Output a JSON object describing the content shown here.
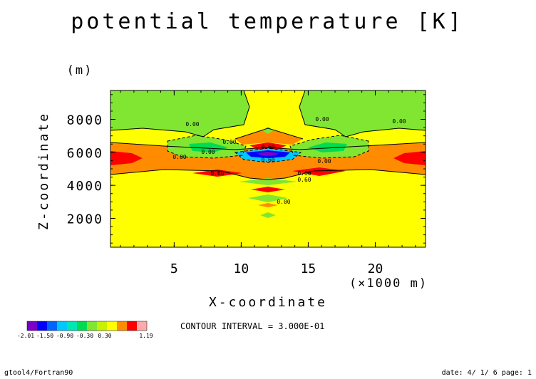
{
  "chart_data": {
    "type": "heatmap",
    "title": "potential temperature [K]",
    "xlabel": "X-coordinate",
    "ylabel": "Z-coordinate",
    "x_unit": "(×1000 m)",
    "y_unit": "(m)",
    "xlim": [
      0.25,
      23.75
    ],
    "ylim": [
      250,
      9750
    ],
    "x_ticks": [
      5,
      10,
      15,
      20
    ],
    "x_tick_labels": [
      "5",
      "10",
      "15",
      "20"
    ],
    "y_ticks": [
      2000,
      4000,
      6000,
      8000
    ],
    "y_tick_labels": [
      "2000",
      "4000",
      "6000",
      "8000"
    ],
    "contour_interval": "CONTOUR INTERVAL = 3.000E-01",
    "contour_labels": [
      "0.00",
      "0.00",
      "0.00",
      "0.00",
      "0.00",
      "0.00",
      "0.00",
      "0.60",
      "0.60",
      "0.60",
      "0.60",
      "0.60",
      "0.00"
    ],
    "colorbar": {
      "colors": [
        "#7a00c8",
        "#0000ff",
        "#0064ff",
        "#00c8ff",
        "#00e6b4",
        "#00dc50",
        "#80e632",
        "#c8f000",
        "#ffff00",
        "#ff8c00",
        "#ff0000",
        "#ffaaaa"
      ],
      "tick_labels": [
        "-2.01",
        "-1.50",
        "-0.90",
        "-0.30",
        "0.30",
        "1.19"
      ]
    }
  },
  "footer": {
    "left": "gtool4/Fortran90",
    "right": "date: 4/ 1/ 6 page: 1"
  },
  "colors": {
    "yellow": "#ffff00",
    "light_green": "#80e632",
    "orange": "#ff8c00",
    "red": "#ff0000",
    "pink": "#ffaaaa",
    "green": "#00dc50",
    "blue": "#0000ff",
    "cyan": "#00c8ff"
  }
}
